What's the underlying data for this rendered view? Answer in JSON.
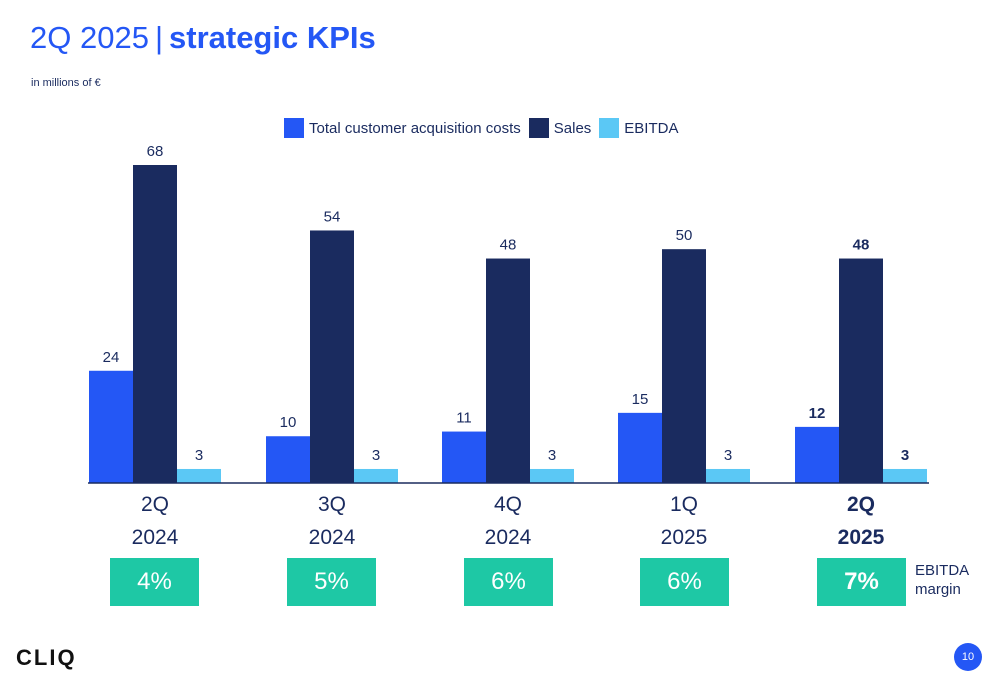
{
  "header": {
    "title_light": "2Q 2025",
    "title_sep": "|",
    "title_bold": "strategic KPIs",
    "subtitle": "in millions of €"
  },
  "colors": {
    "acquisition": "#2457f5",
    "sales": "#1a2b5f",
    "ebitda": "#5bc8f5",
    "margin_box": "#1ec8a5",
    "accent": "#2457f5"
  },
  "chart_data": {
    "type": "bar",
    "categories": [
      "2Q\n2024",
      "3Q\n2024",
      "4Q\n2024",
      "1Q\n2025",
      "2Q\n2025"
    ],
    "category_lines": [
      [
        "2Q",
        "2024"
      ],
      [
        "3Q",
        "2024"
      ],
      [
        "4Q",
        "2024"
      ],
      [
        "1Q",
        "2025"
      ],
      [
        "2Q",
        "2025"
      ]
    ],
    "highlight_index": 4,
    "series": [
      {
        "name": "Total customer acquisition costs",
        "values": [
          24,
          10,
          11,
          15,
          12
        ]
      },
      {
        "name": "Sales",
        "values": [
          68,
          54,
          48,
          50,
          48
        ]
      },
      {
        "name": "EBITDA",
        "values": [
          3,
          3,
          3,
          3,
          3
        ]
      }
    ],
    "ylim": [
      0,
      68
    ],
    "grid": false,
    "legend": "top"
  },
  "ebitda_margin": {
    "label_line1": "EBITDA",
    "label_line2": "margin",
    "values": [
      "4%",
      "5%",
      "6%",
      "6%",
      "7%"
    ]
  },
  "footer": {
    "logo": "CLIQ",
    "page_number": "10"
  }
}
